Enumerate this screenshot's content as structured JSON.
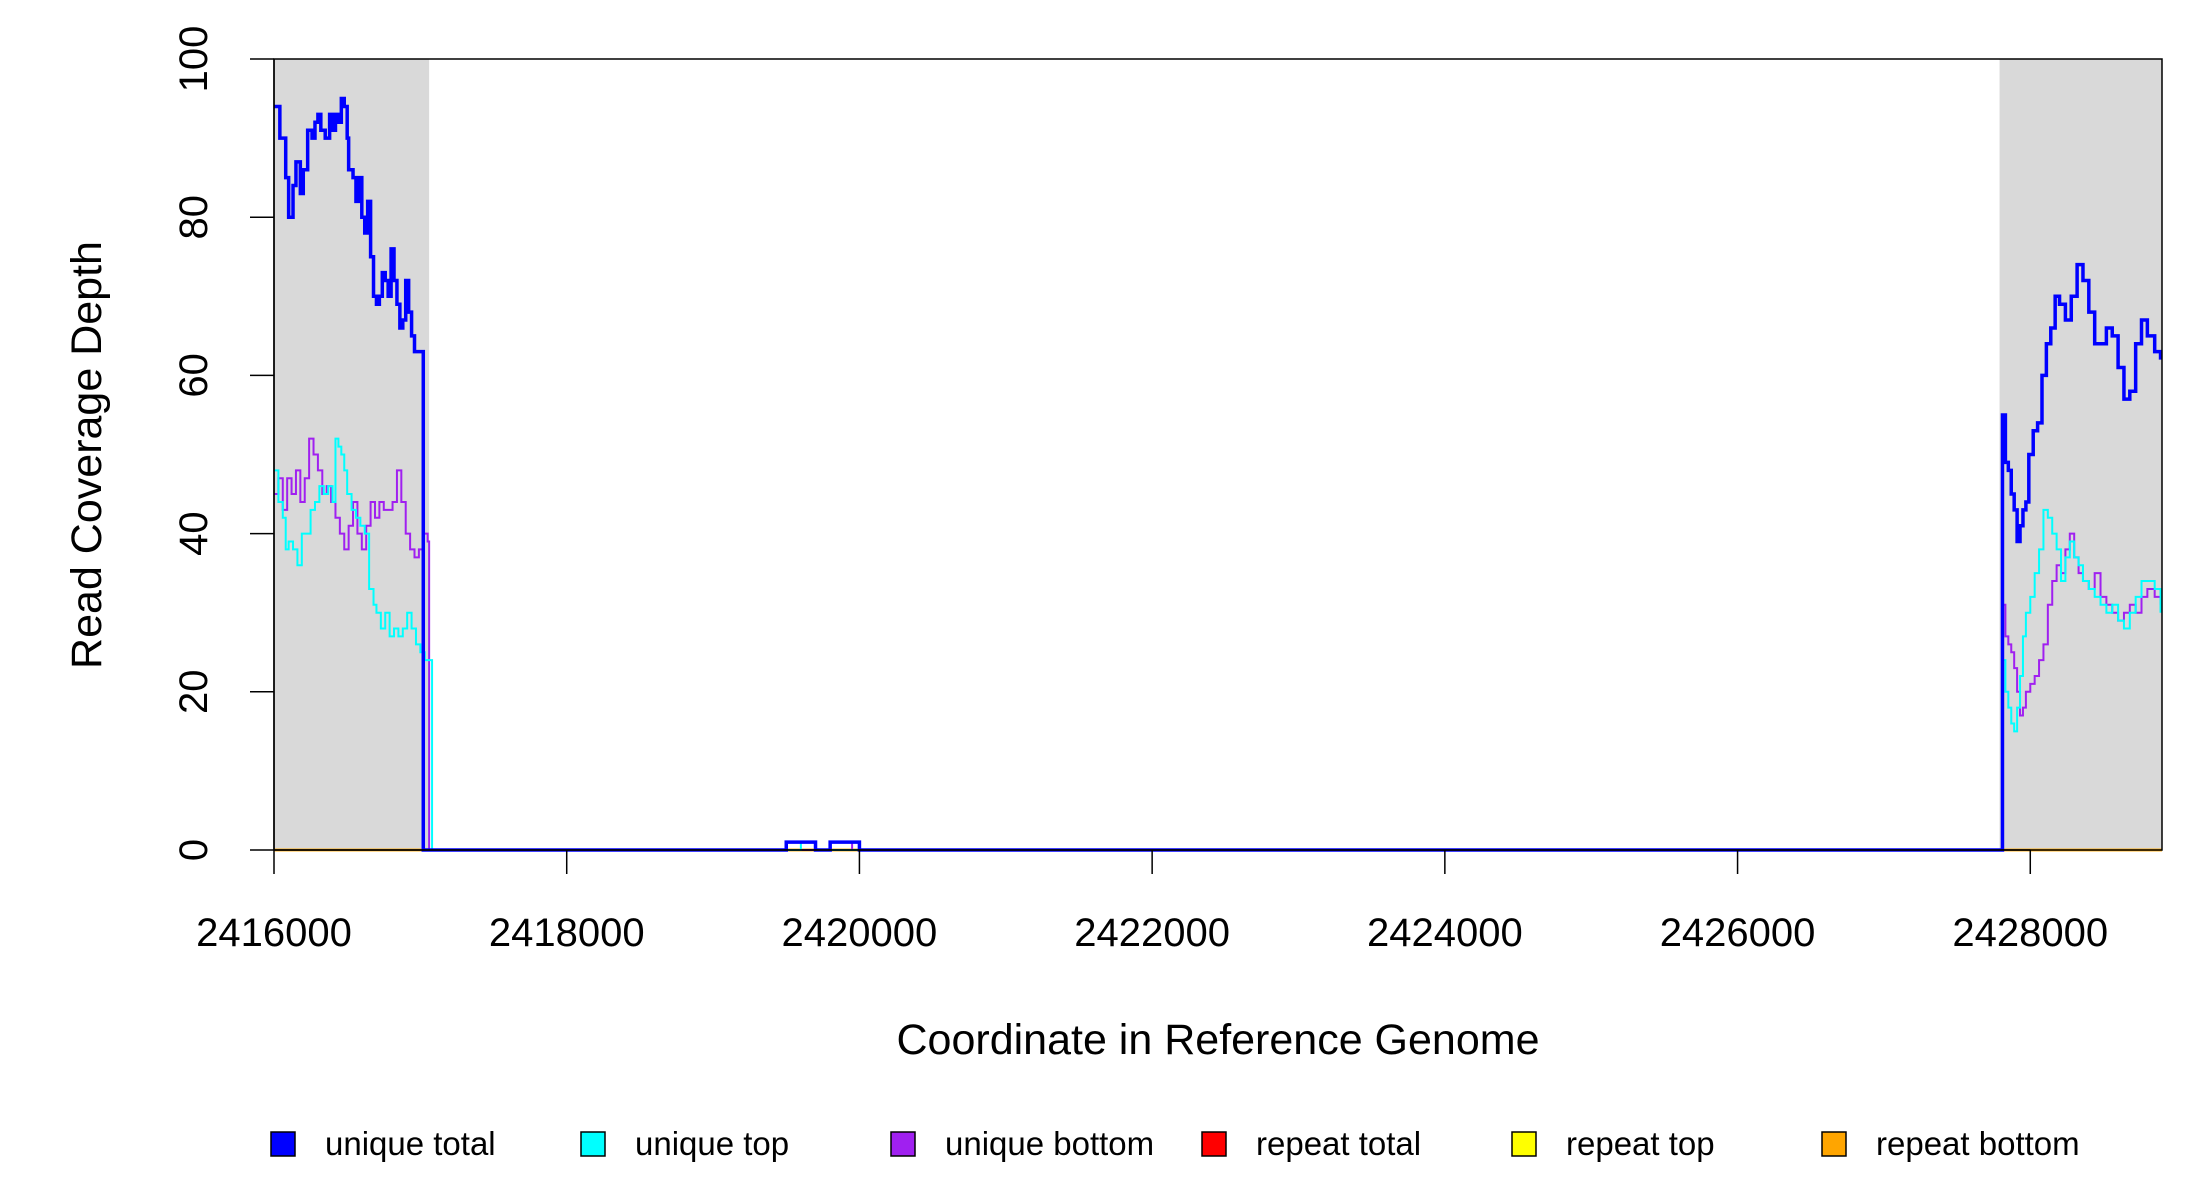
{
  "chart_data": {
    "type": "line",
    "title": "",
    "xlabel": "Coordinate in Reference Genome",
    "ylabel": "Read Coverage Depth",
    "xlim": [
      2416000,
      2428900
    ],
    "ylim": [
      0,
      100
    ],
    "x_ticks": [
      2416000,
      2418000,
      2420000,
      2422000,
      2424000,
      2426000,
      2428000
    ],
    "x_tick_labels": [
      "2416000",
      "2418000",
      "2420000",
      "2422000",
      "2424000",
      "2426000",
      "2428000"
    ],
    "y_ticks": [
      0,
      20,
      40,
      60,
      80,
      100
    ],
    "y_tick_labels": [
      "0",
      "20",
      "40",
      "60",
      "80",
      "100"
    ],
    "grid": false,
    "legend_position": "bottom",
    "shaded_regions": [
      {
        "x0": 2416000,
        "x1": 2417060,
        "color": "#d9d9d9"
      },
      {
        "x0": 2427790,
        "x1": 2428900,
        "color": "#d9d9d9"
      }
    ],
    "series": [
      {
        "name": "unique total",
        "color": "#0000ff",
        "x": [
          2416000,
          2416040,
          2416080,
          2416100,
          2416130,
          2416150,
          2416180,
          2416200,
          2416230,
          2416260,
          2416280,
          2416300,
          2416320,
          2416350,
          2416380,
          2416400,
          2416420,
          2416440,
          2416460,
          2416480,
          2416500,
          2416510,
          2416540,
          2416560,
          2416580,
          2416600,
          2416620,
          2416640,
          2416660,
          2416680,
          2416700,
          2416720,
          2416740,
          2416760,
          2416780,
          2416800,
          2416820,
          2416840,
          2416860,
          2416880,
          2416900,
          2416920,
          2416940,
          2416960,
          2416980,
          2417000,
          2417020,
          2417050,
          2417060,
          2417065,
          2417080,
          2419400,
          2419500,
          2419600,
          2419700,
          2419800,
          2419900,
          2420000,
          2420100,
          2427750,
          2427800,
          2427810,
          2427830,
          2427850,
          2427870,
          2427890,
          2427910,
          2427930,
          2427950,
          2427970,
          2427990,
          2428020,
          2428050,
          2428080,
          2428110,
          2428140,
          2428170,
          2428200,
          2428240,
          2428280,
          2428320,
          2428360,
          2428400,
          2428440,
          2428480,
          2428520,
          2428560,
          2428600,
          2428640,
          2428680,
          2428720,
          2428760,
          2428800,
          2428850,
          2428890
        ],
        "y": [
          94,
          90,
          85,
          80,
          84,
          87,
          83,
          86,
          91,
          90,
          92,
          93,
          91,
          90,
          93,
          91,
          93,
          92,
          95,
          94,
          90,
          86,
          85,
          82,
          85,
          80,
          78,
          82,
          75,
          70,
          69,
          70,
          73,
          72,
          70,
          76,
          72,
          69,
          66,
          67,
          72,
          68,
          65,
          63,
          63,
          63,
          0,
          0,
          0,
          0,
          0,
          0,
          1,
          1,
          0,
          1,
          1,
          0,
          0,
          0,
          0,
          55,
          49,
          48,
          45,
          43,
          39,
          41,
          43,
          44,
          50,
          53,
          54,
          60,
          64,
          66,
          70,
          69,
          67,
          70,
          74,
          72,
          68,
          64,
          64,
          66,
          65,
          61,
          57,
          58,
          64,
          67,
          65,
          63,
          62
        ]
      },
      {
        "name": "unique top",
        "color": "#00ffff",
        "x": [
          2416000,
          2416030,
          2416060,
          2416080,
          2416100,
          2416130,
          2416160,
          2416190,
          2416220,
          2416250,
          2416280,
          2416310,
          2416340,
          2416370,
          2416400,
          2416420,
          2416440,
          2416460,
          2416480,
          2416500,
          2416530,
          2416560,
          2416590,
          2416620,
          2416650,
          2416680,
          2416700,
          2416730,
          2416760,
          2416790,
          2416820,
          2416850,
          2416880,
          2416910,
          2416940,
          2416970,
          2417000,
          2417030,
          2417060,
          2417080,
          2419400,
          2419600,
          2419700,
          2427790,
          2427810,
          2427830,
          2427850,
          2427870,
          2427890,
          2427910,
          2427930,
          2427950,
          2427970,
          2428000,
          2428030,
          2428060,
          2428090,
          2428120,
          2428150,
          2428180,
          2428210,
          2428240,
          2428270,
          2428300,
          2428330,
          2428360,
          2428400,
          2428440,
          2428480,
          2428520,
          2428560,
          2428600,
          2428640,
          2428680,
          2428720,
          2428760,
          2428800,
          2428850,
          2428890
        ],
        "y": [
          48,
          44,
          42,
          38,
          39,
          38,
          36,
          40,
          40,
          43,
          44,
          46,
          45,
          46,
          44,
          52,
          51,
          50,
          48,
          45,
          43,
          42,
          41,
          40,
          33,
          31,
          30,
          28,
          30,
          27,
          28,
          27,
          28,
          30,
          28,
          26,
          25,
          24,
          24,
          0,
          0,
          1,
          0,
          0,
          24,
          20,
          18,
          16,
          15,
          18,
          22,
          27,
          30,
          32,
          35,
          38,
          43,
          42,
          40,
          38,
          34,
          37,
          39,
          37,
          36,
          34,
          33,
          32,
          31,
          30,
          31,
          29,
          28,
          30,
          32,
          34,
          34,
          33,
          30
        ]
      },
      {
        "name": "unique bottom",
        "color": "#a020f0",
        "x": [
          2416000,
          2416030,
          2416060,
          2416090,
          2416120,
          2416150,
          2416180,
          2416210,
          2416240,
          2416270,
          2416300,
          2416330,
          2416360,
          2416390,
          2416420,
          2416450,
          2416480,
          2416510,
          2416540,
          2416570,
          2416600,
          2416630,
          2416660,
          2416690,
          2416720,
          2416750,
          2416780,
          2416810,
          2416840,
          2416870,
          2416900,
          2416930,
          2416960,
          2416990,
          2417020,
          2417050,
          2417060,
          2417080,
          2419800,
          2419950,
          2427790,
          2427810,
          2427830,
          2427850,
          2427870,
          2427890,
          2427910,
          2427930,
          2427950,
          2427970,
          2428000,
          2428030,
          2428060,
          2428090,
          2428120,
          2428150,
          2428180,
          2428210,
          2428240,
          2428270,
          2428300,
          2428330,
          2428360,
          2428400,
          2428440,
          2428480,
          2428520,
          2428560,
          2428600,
          2428640,
          2428680,
          2428720,
          2428760,
          2428800,
          2428850,
          2428890
        ],
        "y": [
          45,
          47,
          43,
          47,
          45,
          48,
          44,
          47,
          52,
          50,
          48,
          45,
          46,
          44,
          42,
          40,
          38,
          41,
          44,
          40,
          38,
          41,
          44,
          42,
          44,
          43,
          43,
          44,
          48,
          44,
          40,
          38,
          37,
          38,
          40,
          39,
          0,
          0,
          1,
          0,
          0,
          31,
          27,
          26,
          25,
          23,
          20,
          17,
          18,
          20,
          21,
          22,
          24,
          26,
          31,
          34,
          36,
          35,
          38,
          40,
          37,
          35,
          34,
          33,
          35,
          32,
          31,
          30,
          29,
          30,
          31,
          30,
          32,
          33,
          32,
          31
        ]
      },
      {
        "name": "repeat total",
        "color": "#ff0000",
        "x": [
          2416000,
          2428900
        ],
        "y": [
          0,
          0
        ]
      },
      {
        "name": "repeat top",
        "color": "#ffff00",
        "x": [
          2416000,
          2428900
        ],
        "y": [
          0,
          0
        ]
      },
      {
        "name": "repeat bottom",
        "color": "#ffa500",
        "x": [
          2416000,
          2428900
        ],
        "y": [
          0,
          0
        ]
      }
    ]
  }
}
